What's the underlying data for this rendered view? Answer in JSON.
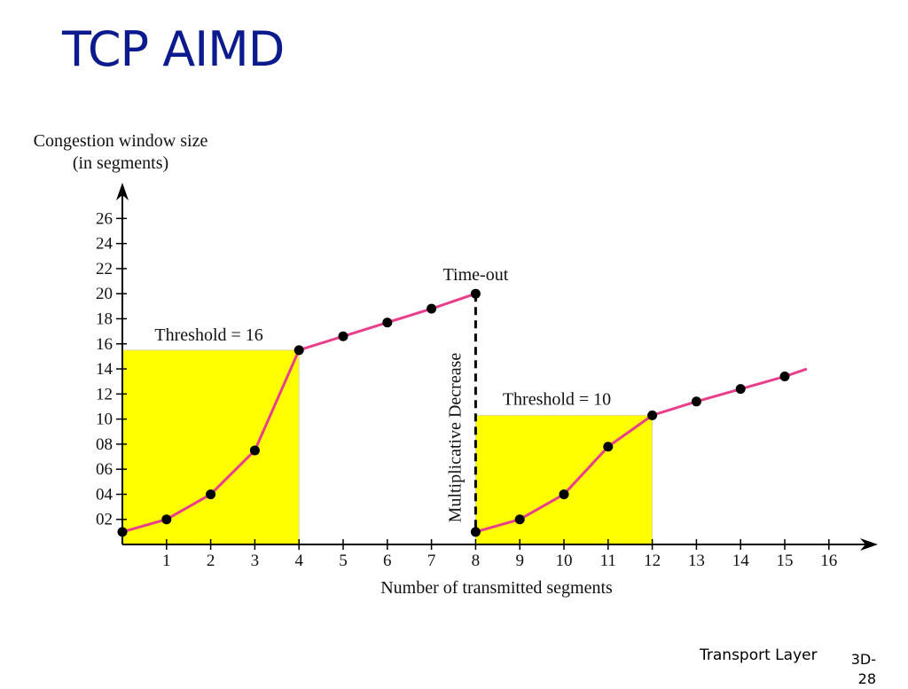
{
  "slide": {
    "title": "TCP AIMD",
    "footer_label": "Transport Layer",
    "footer_page": "3D-28"
  },
  "colors": {
    "title": "#0b1a8c",
    "line": "#e83e8c",
    "highlight": "#ffff00",
    "marker": "#000000"
  },
  "chart_data": {
    "type": "line",
    "title": "",
    "ylabel_lines": [
      "Congestion window size",
      "(in segments)"
    ],
    "xlabel": "Number of transmitted segments",
    "xlim": [
      0,
      16
    ],
    "ylim": [
      0,
      27
    ],
    "x_ticks": [
      1,
      2,
      3,
      4,
      5,
      6,
      7,
      8,
      9,
      10,
      11,
      12,
      13,
      14,
      15,
      16
    ],
    "x_tick_labels": [
      "1",
      "2",
      "3",
      "4",
      "5",
      "6",
      "7",
      "8",
      "9",
      "10",
      "11",
      "12",
      "13",
      "14",
      "15",
      "16"
    ],
    "y_ticks": [
      2,
      4,
      6,
      8,
      10,
      12,
      14,
      16,
      18,
      20,
      22,
      24,
      26
    ],
    "y_tick_labels": [
      "02",
      "04",
      "06",
      "08",
      "10",
      "12",
      "14",
      "16",
      "18",
      "20",
      "22",
      "24",
      "26"
    ],
    "segments": [
      {
        "points": [
          [
            0,
            1
          ],
          [
            1,
            2
          ],
          [
            2,
            4
          ],
          [
            3,
            7.5
          ],
          [
            4,
            15.5
          ],
          [
            5,
            16.6
          ],
          [
            6,
            17.7
          ],
          [
            7,
            18.8
          ],
          [
            8,
            20
          ]
        ],
        "extend_to": null
      },
      {
        "points": [
          [
            8,
            1
          ],
          [
            9,
            2
          ],
          [
            10,
            4
          ],
          [
            11,
            7.8
          ],
          [
            12,
            10.3
          ],
          [
            13,
            11.4
          ],
          [
            14,
            12.4
          ],
          [
            15,
            13.4
          ]
        ],
        "extend_to": [
          15.5,
          14
        ]
      }
    ],
    "threshold_regions": [
      {
        "x_start": 0,
        "x_end": 4,
        "y_top": 15.5,
        "label": "Threshold = 16"
      },
      {
        "x_start": 8,
        "x_end": 12,
        "y_top": 10.3,
        "label": "Threshold = 10"
      }
    ],
    "annotations": {
      "timeout_label": "Time-out",
      "timeout_x": 8,
      "decrease_label": "Multiplicative Decrease",
      "decrease_from": 20,
      "decrease_to": 1
    },
    "grid": false,
    "legend": "none"
  }
}
